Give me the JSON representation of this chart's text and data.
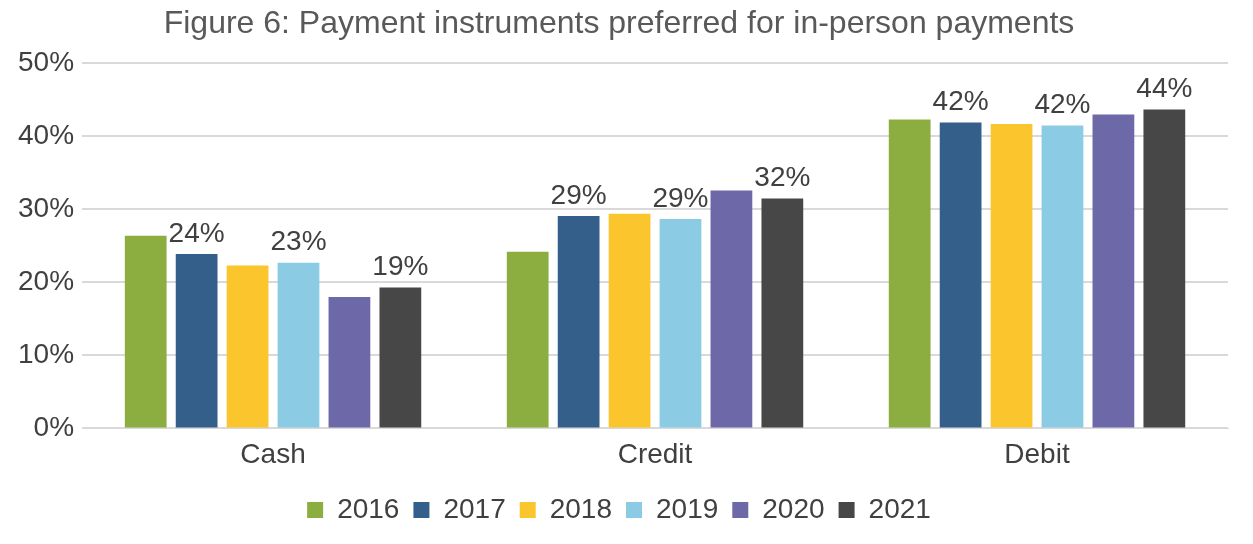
{
  "chart_data": {
    "type": "bar",
    "title": "Figure 6: Payment instruments preferred for in-person payments",
    "categories": [
      "Cash",
      "Credit",
      "Debit"
    ],
    "series": [
      {
        "name": "2016",
        "color": "#8cad40",
        "values": [
          26.4,
          24.2,
          42.3
        ]
      },
      {
        "name": "2017",
        "color": "#335f8a",
        "values": [
          23.9,
          29.1,
          41.9
        ],
        "value_labels": [
          "24%",
          "29%",
          "42%"
        ]
      },
      {
        "name": "2018",
        "color": "#fbc52d",
        "values": [
          22.3,
          29.4,
          41.7
        ]
      },
      {
        "name": "2019",
        "color": "#8ccbe4",
        "values": [
          22.7,
          28.7,
          41.5
        ],
        "value_labels": [
          "23%",
          "29%",
          "42%"
        ]
      },
      {
        "name": "2020",
        "color": "#6d69a9",
        "values": [
          18.0,
          32.6,
          43.0
        ]
      },
      {
        "name": "2021",
        "color": "#474747",
        "values": [
          19.3,
          31.5,
          43.7
        ],
        "value_labels": [
          "19%",
          "32%",
          "44%"
        ]
      }
    ],
    "ylim": [
      0,
      50
    ],
    "yticks": [
      {
        "value": 0,
        "label": "0%"
      },
      {
        "value": 10,
        "label": "10%"
      },
      {
        "value": 20,
        "label": "20%"
      },
      {
        "value": 30,
        "label": "30%"
      },
      {
        "value": 40,
        "label": "40%"
      },
      {
        "value": 50,
        "label": "50%"
      }
    ],
    "grid": "y",
    "legend": "bottom"
  }
}
